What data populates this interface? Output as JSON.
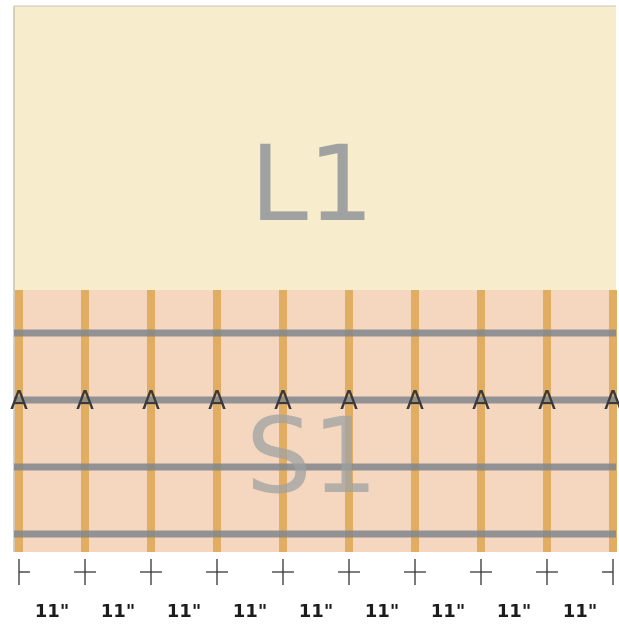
{
  "zones": {
    "upper_label": "L1",
    "lower_label": "S1"
  },
  "colors": {
    "upper_fill": "#f7eccb",
    "lower_fill": "#f5d6bf",
    "stud": "#e1ad62",
    "band": "#80858c",
    "border": "#c9c3b0",
    "tick": "#333333"
  },
  "stud_marker": "A",
  "stud_count": 10,
  "band_count": 4,
  "spacing_labels": [
    "11\"",
    "11\"",
    "11\"",
    "11\"",
    "11\"",
    "11\"",
    "11\"",
    "11\"",
    "11\""
  ]
}
